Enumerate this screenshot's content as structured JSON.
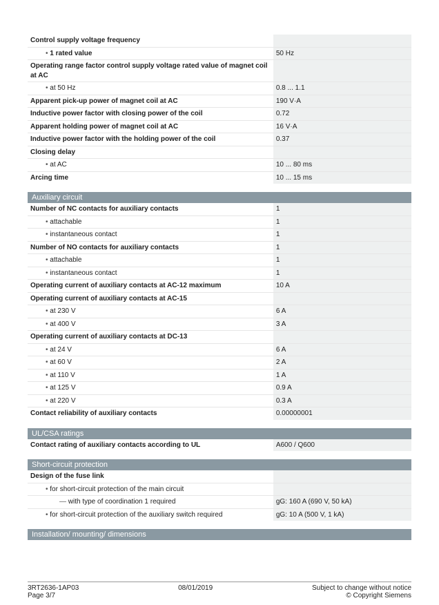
{
  "sections": {
    "aux": "Auxiliary circuit",
    "ul": "UL/CSA ratings",
    "sc": "Short-circuit protection",
    "inst": "Installation/ mounting/ dimensions"
  },
  "rows": {
    "controlFreq": "Control supply voltage frequency",
    "ratedVal": "1 rated value",
    "ratedValV": "50 Hz",
    "opRangeFactor": "Operating range factor control supply voltage rated value of magnet coil at AC",
    "at50": "at 50 Hz",
    "at50V": "0.8 ... 1.1",
    "pickUp": "Apparent pick-up power of magnet coil at AC",
    "pickUpV": "190 V·A",
    "indClose": "Inductive power factor with closing power of the coil",
    "indCloseV": "0.72",
    "hold": "Apparent holding power of magnet coil at AC",
    "holdV": "16 V·A",
    "indHold": "Inductive power factor with the holding power of the coil",
    "indHoldV": "0.37",
    "closeDelay": "Closing delay",
    "atAC": "at AC",
    "atACV": "10 ... 80 ms",
    "arcing": "Arcing time",
    "arcingV": "10 ... 15 ms",
    "ncAux": "Number of NC contacts for auxiliary contacts",
    "ncAuxV": "1",
    "attach": "attachable",
    "attachV": "1",
    "instCont": "instantaneous contact",
    "instContV": "1",
    "noAux": "Number of NO contacts for auxiliary contacts",
    "noAuxV": "1",
    "attach2V": "1",
    "instCont2V": "1",
    "ac12": "Operating current of auxiliary contacts at AC-12 maximum",
    "ac12V": "10 A",
    "ac15": "Operating current of auxiliary contacts at AC-15",
    "at230": "at 230 V",
    "at230V": "6 A",
    "at400": "at 400 V",
    "at400V": "3 A",
    "dc13": "Operating current of auxiliary contacts at DC-13",
    "at24": "at 24 V",
    "at24V": "6 A",
    "at60": "at 60 V",
    "at60V": "2 A",
    "at110": "at 110 V",
    "at110V": "1 A",
    "at125": "at 125 V",
    "at125V": "0.9 A",
    "at220": "at 220 V",
    "at220V": "0.3 A",
    "contRel": "Contact reliability of auxiliary contacts",
    "contRelV": "0.00000001",
    "ulRating": "Contact rating of auxiliary contacts according to UL",
    "ulRatingV": "A600 / Q600",
    "fuseDesign": "Design of the fuse link",
    "scMain": "for short-circuit protection of the main circuit",
    "scMainCoord": "with type of coordination 1 required",
    "scMainCoordV": "gG: 160 A (690 V, 50 kA)",
    "scAux": "for short-circuit protection of the auxiliary switch required",
    "scAuxV": "gG: 10 A (500 V, 1 kA)"
  },
  "footer": {
    "product": "3RT2636-1AP03",
    "page": "Page 3/7",
    "date": "08/01/2019",
    "notice": "Subject to change without notice",
    "copy": "© Copyright Siemens"
  },
  "colors": {
    "sectionBg": "#8a99a2",
    "valBg": "#eef0f0",
    "border": "#e6e6e6"
  }
}
